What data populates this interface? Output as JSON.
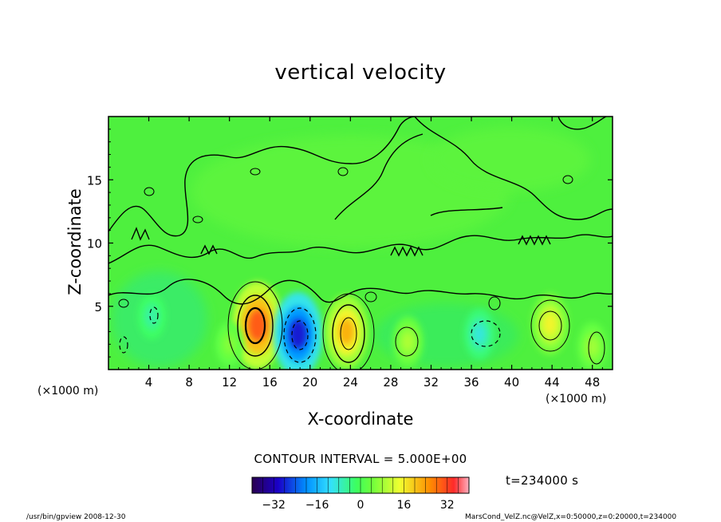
{
  "chart_data": {
    "type": "heatmap",
    "title": "vertical velocity",
    "xlabel": "X-coordinate",
    "ylabel": "Z-coordinate",
    "x_unit": "(×1000 m)",
    "z_unit": "(×1000 m)",
    "xlim": [
      0,
      50
    ],
    "ylim": [
      0,
      20
    ],
    "xticks": [
      4,
      8,
      12,
      16,
      20,
      24,
      28,
      32,
      36,
      40,
      44,
      48
    ],
    "yticks": [
      5,
      10,
      15
    ],
    "contour_interval_label": "CONTOUR INTERVAL = 5.000E+00",
    "time_label": "t=234000 s",
    "colorbar": {
      "min": -40,
      "max": 40,
      "ticks": [
        -32,
        -16,
        0,
        16,
        32
      ]
    },
    "features": [
      {
        "x": 14.8,
        "z": 3.5,
        "value": 30,
        "sign": "positive"
      },
      {
        "x": 18.8,
        "z": 2.8,
        "value": -28,
        "sign": "negative"
      },
      {
        "x": 23.6,
        "z": 3.0,
        "value": 22,
        "sign": "positive"
      },
      {
        "x": 43.8,
        "z": 3.6,
        "value": 15,
        "sign": "positive"
      },
      {
        "x": 29.7,
        "z": 2.2,
        "value": 9,
        "sign": "positive"
      },
      {
        "x": 36.8,
        "z": 2.8,
        "value": -9,
        "sign": "negative"
      },
      {
        "x": 4.3,
        "z": 4.2,
        "value": -6,
        "sign": "negative"
      },
      {
        "x": 48.0,
        "z": 1.8,
        "value": 8,
        "sign": "positive"
      },
      {
        "x": 12.0,
        "z": 2.0,
        "value": 6,
        "sign": "positive"
      }
    ]
  },
  "footer": {
    "left": "/usr/bin/gpview   2008-12-30",
    "right": "MarsCond_VelZ.nc@VelZ,x=0:50000,z=0:20000,t=234000"
  }
}
